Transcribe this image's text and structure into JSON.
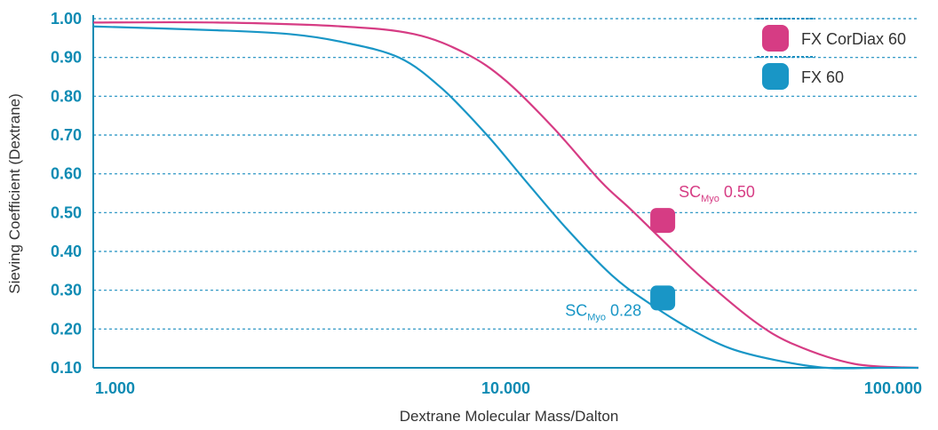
{
  "chart_data": {
    "type": "line",
    "title": "",
    "xlabel": "Dextrane Molecular Mass/Dalton",
    "ylabel": "Sieving Coefficient (Dextrane)",
    "x_scale": "log",
    "xlim": [
      1000,
      100000
    ],
    "ylim": [
      0.1,
      1.0
    ],
    "x_ticks": [
      1000,
      10000,
      100000
    ],
    "x_tick_labels": [
      "1.000",
      "10.000",
      "100.000"
    ],
    "y_ticks": [
      0.1,
      0.2,
      0.3,
      0.4,
      0.5,
      0.6,
      0.7,
      0.8,
      0.9,
      1.0
    ],
    "y_tick_labels": [
      "0.10",
      "0.20",
      "0.30",
      "0.40",
      "0.50",
      "0.60",
      "0.70",
      "0.80",
      "0.90",
      "1.00"
    ],
    "grid": "horizontal dashed",
    "legend_position": "top-right",
    "series": [
      {
        "name": "FX CorDiax 60",
        "color": "#d63c84",
        "x": [
          1000,
          2000,
          4000,
          6000,
          8000,
          10000,
          13000,
          17000,
          20000,
          25000,
          30000,
          40000,
          50000,
          70000,
          100000
        ],
        "y": [
          0.99,
          0.99,
          0.98,
          0.96,
          0.91,
          0.84,
          0.72,
          0.58,
          0.51,
          0.41,
          0.33,
          0.22,
          0.16,
          0.11,
          0.1
        ]
      },
      {
        "name": "FX 60",
        "color": "#1996c6",
        "x": [
          1000,
          2000,
          3000,
          4000,
          5500,
          7000,
          9000,
          11000,
          14000,
          18000,
          22000,
          28000,
          35000,
          45000,
          60000,
          80000,
          100000
        ],
        "y": [
          0.98,
          0.97,
          0.96,
          0.94,
          0.9,
          0.82,
          0.7,
          0.59,
          0.46,
          0.34,
          0.27,
          0.2,
          0.15,
          0.12,
          0.1,
          0.1,
          0.1
        ]
      }
    ],
    "annotations": [
      {
        "series": "FX CorDiax 60",
        "x": 24000,
        "y": 0.48,
        "text": "SC",
        "sub": "Myo",
        "value": "0.50",
        "color": "#d63c84"
      },
      {
        "series": "FX 60",
        "x": 24000,
        "y": 0.28,
        "text": "SC",
        "sub": "Myo",
        "value": "0.28",
        "color": "#1996c6"
      }
    ],
    "colors": {
      "axis": "#0e8bb3",
      "grid": "#1c8fc0",
      "text": "#333333"
    }
  }
}
